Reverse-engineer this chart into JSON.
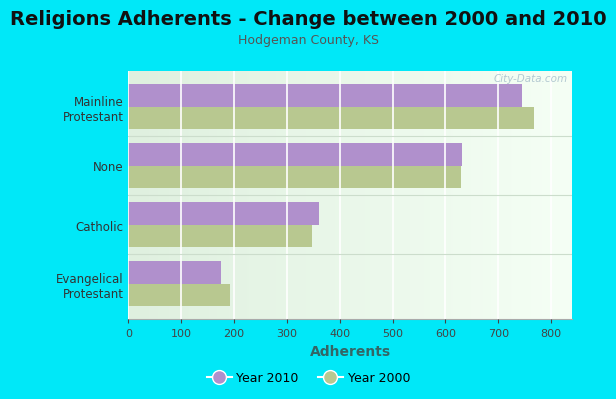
{
  "title": "Religions Adherents - Change between 2000 and 2010",
  "subtitle": "Hodgeman County, KS",
  "xlabel": "Adherents",
  "categories": [
    "Evangelical\nProtestant",
    "Catholic",
    "None",
    "Mainline\nProtestant"
  ],
  "values_2010": [
    175,
    360,
    632,
    745
  ],
  "values_2000": [
    192,
    347,
    630,
    768
  ],
  "color_2010": "#b090cc",
  "color_2000": "#b8c890",
  "background_outer": "#00e8f8",
  "background_inner_left": "#e8f8e8",
  "background_inner_right": "#f8fff8",
  "xlim": [
    0,
    840
  ],
  "xticks": [
    0,
    100,
    200,
    300,
    400,
    500,
    600,
    700,
    800
  ],
  "bar_height": 0.38,
  "watermark": "City-Data.com",
  "title_fontsize": 14,
  "subtitle_fontsize": 9
}
